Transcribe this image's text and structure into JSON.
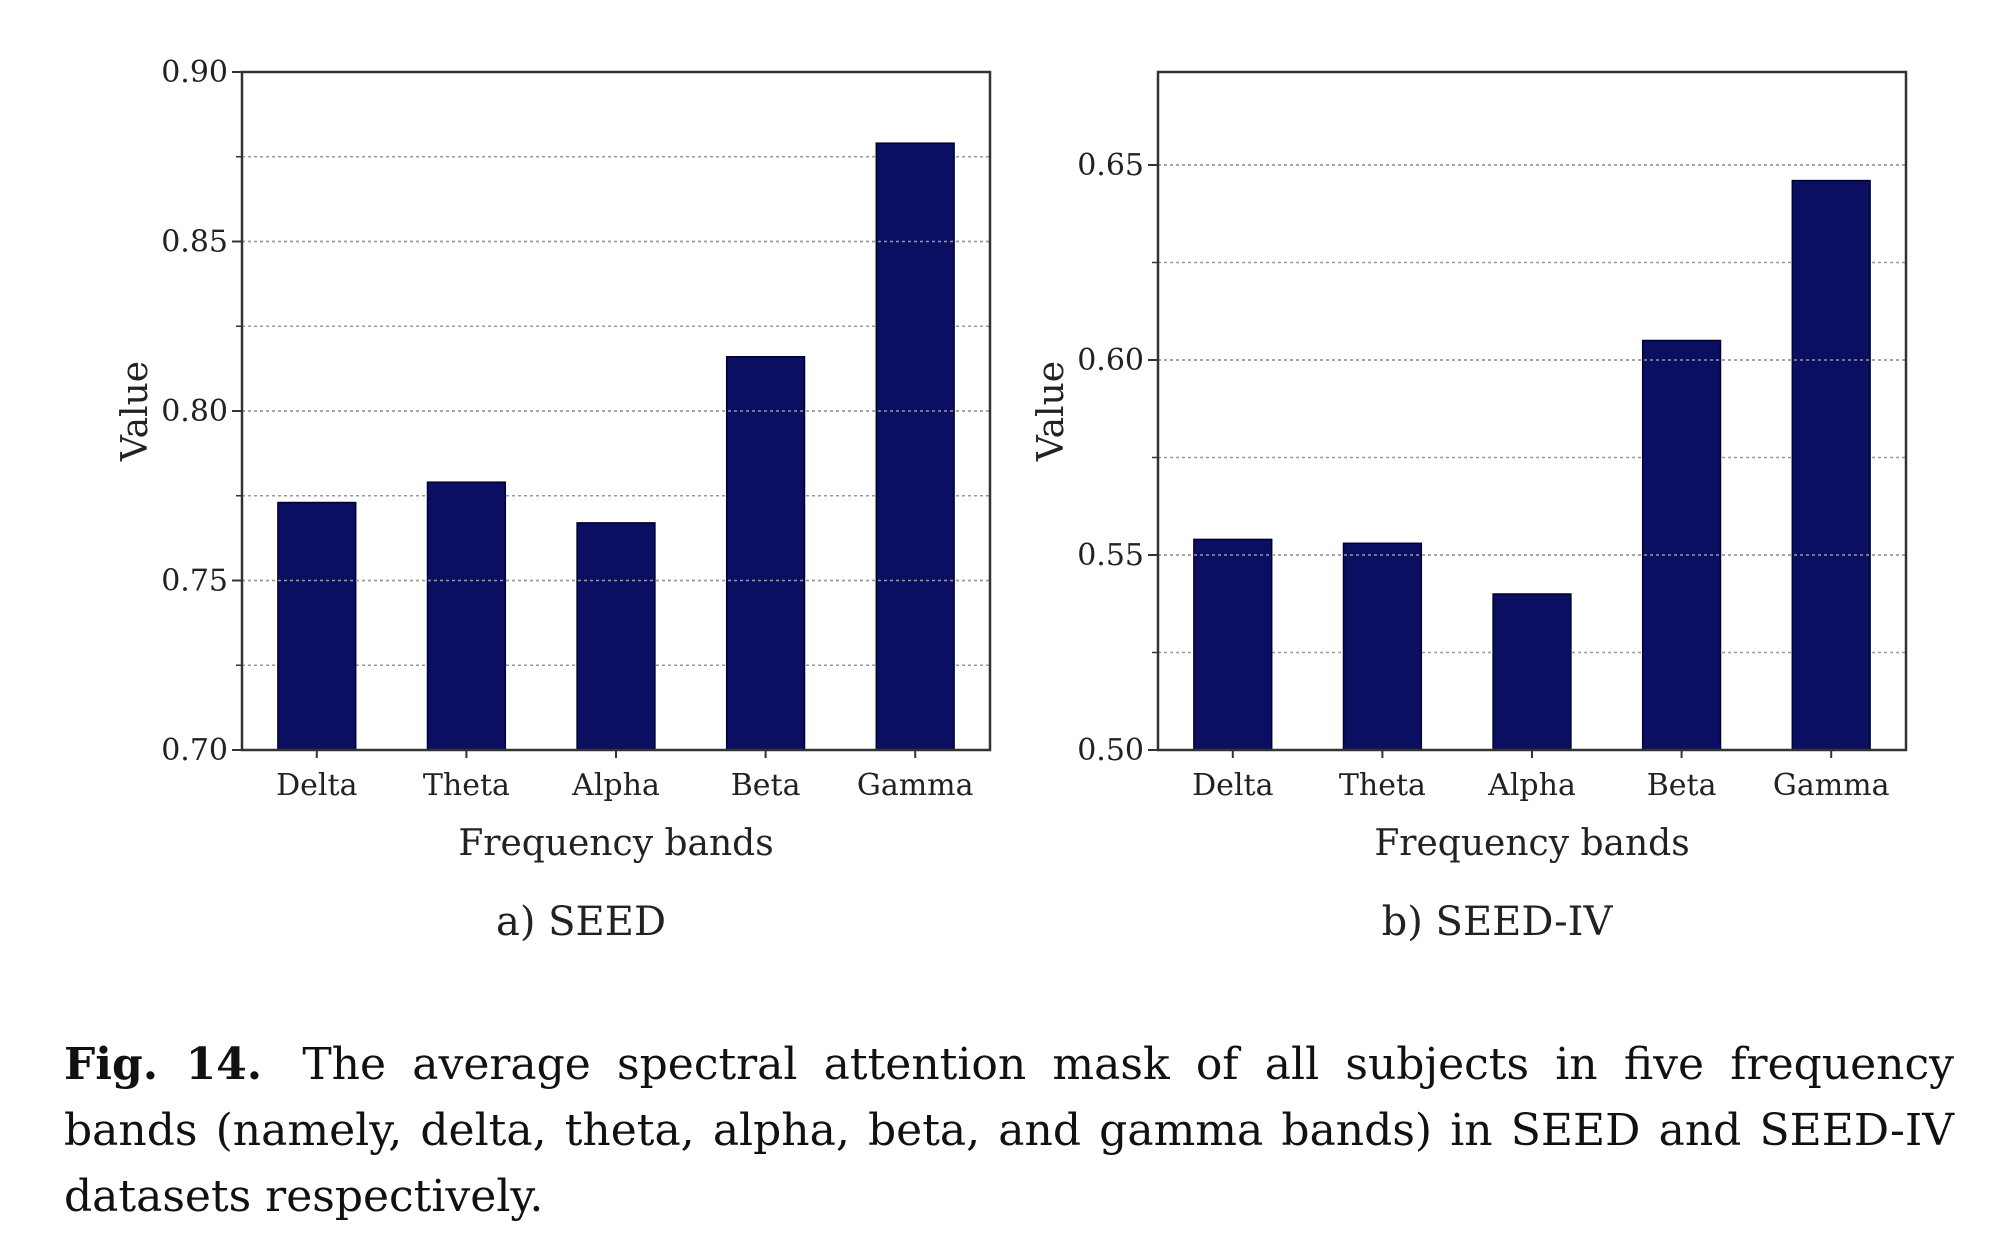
{
  "caption": {
    "label": "Fig. 14.",
    "text": "The average spectral attention mask of all subjects in five frequency bands (namely, delta, theta, alpha, beta, and gamma bands) in SEED and SEED-IV datasets respectively."
  },
  "colors": {
    "bar": "#0a0f62",
    "axis": "#333333",
    "grid": "#9a9a9a"
  },
  "chart_data": [
    {
      "type": "bar",
      "panel_caption": "a) SEED",
      "title": "",
      "xlabel": "Frequency bands",
      "ylabel": "Value",
      "categories": [
        "Delta",
        "Theta",
        "Alpha",
        "Beta",
        "Gamma"
      ],
      "values": [
        0.773,
        0.779,
        0.767,
        0.816,
        0.879
      ],
      "ylim": [
        0.7,
        0.9
      ],
      "yticks": [
        "0.70",
        "0.75",
        "0.80",
        "0.85",
        "0.90"
      ],
      "grid": true,
      "minor_grid": true
    },
    {
      "type": "bar",
      "panel_caption": "b) SEED-IV",
      "title": "",
      "xlabel": "Frequency bands",
      "ylabel": "Value",
      "categories": [
        "Delta",
        "Theta",
        "Alpha",
        "Beta",
        "Gamma"
      ],
      "values": [
        0.554,
        0.553,
        0.54,
        0.605,
        0.646
      ],
      "ylim": [
        0.5,
        0.675
      ],
      "yticks": [
        "0.50",
        "0.55",
        "0.60",
        "0.65"
      ],
      "grid": true,
      "minor_grid": true
    }
  ]
}
